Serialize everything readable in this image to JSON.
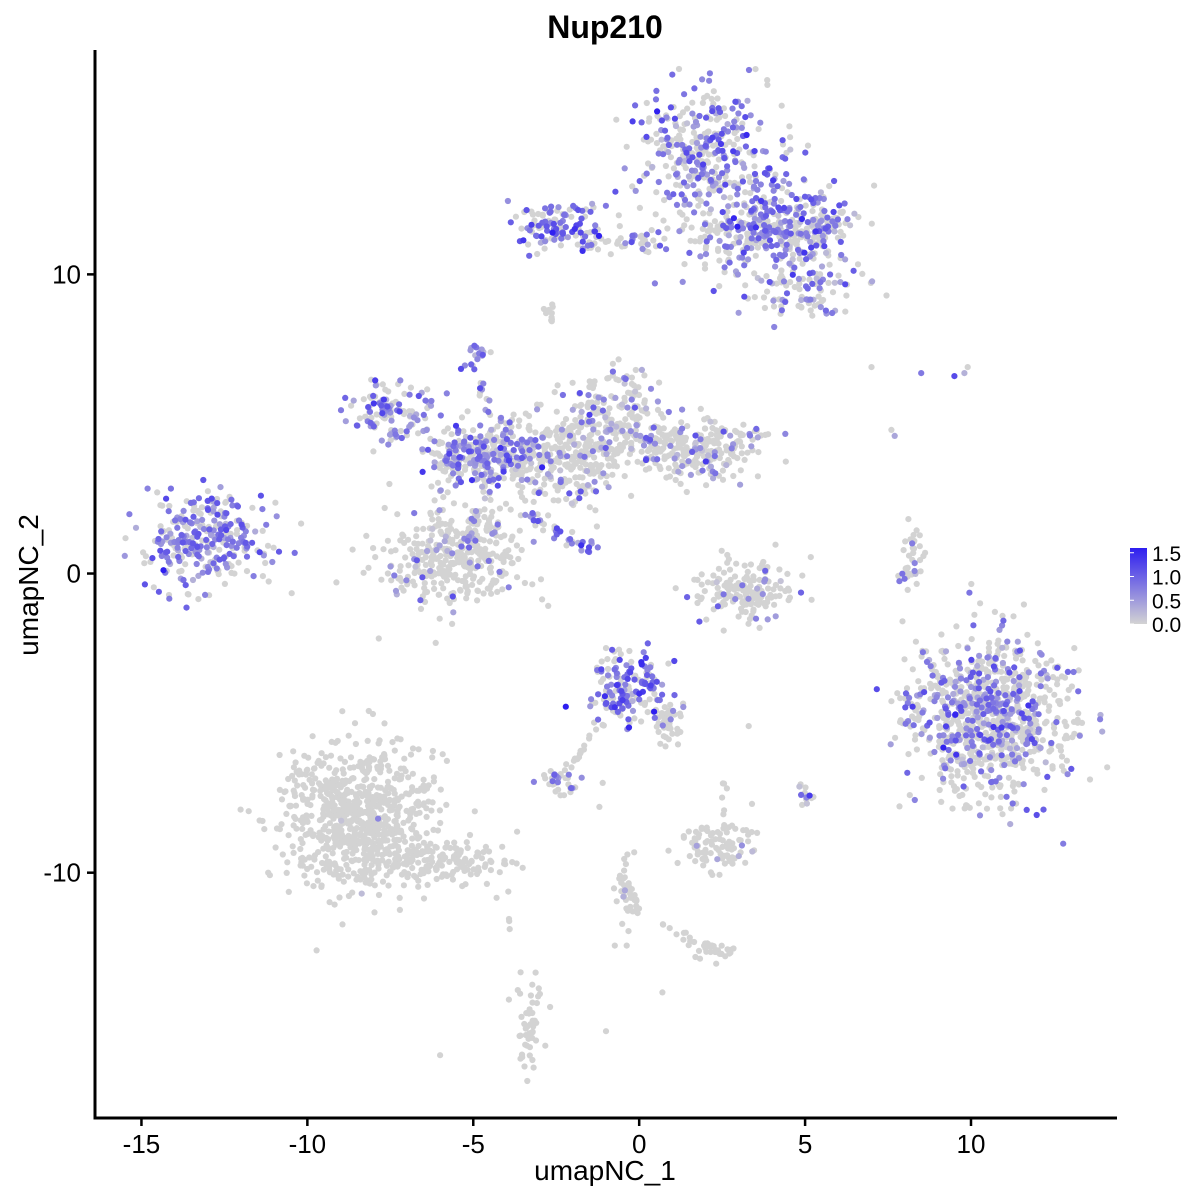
{
  "chart_data": {
    "type": "scatter",
    "title": "Nup210",
    "xlabel": "umapNC_1",
    "ylabel": "umapNC_2",
    "xlim": [
      -16.4,
      14.4
    ],
    "ylim": [
      -18.2,
      17.5
    ],
    "x_ticks": [
      -15,
      -10,
      -5,
      0,
      5,
      10
    ],
    "x_tick_labels": [
      "-15",
      "-10",
      "-5",
      "0",
      "5",
      "10"
    ],
    "y_ticks": [
      -10,
      0,
      10
    ],
    "y_tick_labels": [
      "-10",
      "0",
      "10"
    ],
    "grid": false,
    "color_scale": {
      "low_color": "#d3d3d3",
      "high_color": "#2e1ef0",
      "min": 0,
      "max": 1.6,
      "breaks": [
        1.5,
        1.0,
        0.5,
        0.0
      ],
      "break_labels": [
        "1.5",
        "1.0",
        "0.5",
        "0.0"
      ],
      "position": "right"
    },
    "clusters": [
      {
        "cx": -13.0,
        "cy": 1.1,
        "sx": 1.0,
        "sy": 0.75,
        "n": 300,
        "expr_frac": 0.6,
        "expr_mean": 0.75
      },
      {
        "cx": -8.4,
        "cy": -8.1,
        "sx": 1.1,
        "sy": 1.2,
        "n": 750,
        "expr_frac": 0.005,
        "expr_mean": 0.5
      },
      {
        "cx": -6.2,
        "cy": -9.7,
        "sx": 1.3,
        "sy": 0.35,
        "n": 160,
        "expr_frac": 0.0,
        "expr_mean": 0.0
      },
      {
        "cx": -5.6,
        "cy": 0.6,
        "sx": 1.1,
        "sy": 0.9,
        "n": 380,
        "expr_frac": 0.08,
        "expr_mean": 0.6
      },
      {
        "cx": -7.5,
        "cy": 5.4,
        "sx": 0.6,
        "sy": 0.5,
        "n": 120,
        "expr_frac": 0.6,
        "expr_mean": 0.7
      },
      {
        "cx": -4.8,
        "cy": 4.0,
        "sx": 0.9,
        "sy": 0.5,
        "n": 280,
        "expr_frac": 0.55,
        "expr_mean": 0.75
      },
      {
        "cx": -2.3,
        "cy": 3.8,
        "sx": 1.0,
        "sy": 0.8,
        "n": 300,
        "expr_frac": 0.12,
        "expr_mean": 0.65
      },
      {
        "cx": -0.8,
        "cy": 5.3,
        "sx": 0.6,
        "sy": 0.8,
        "n": 180,
        "expr_frac": 0.18,
        "expr_mean": 0.65
      },
      {
        "cx": 1.6,
        "cy": 4.2,
        "sx": 1.1,
        "sy": 0.5,
        "n": 280,
        "expr_frac": 0.2,
        "expr_mean": 0.7
      },
      {
        "cx": -4.9,
        "cy": 7.3,
        "sx": 0.2,
        "sy": 0.2,
        "n": 18,
        "expr_frac": 0.8,
        "expr_mean": 0.8
      },
      {
        "cx": -2.4,
        "cy": 11.7,
        "sx": 0.6,
        "sy": 0.4,
        "n": 110,
        "expr_frac": 0.6,
        "expr_mean": 0.9
      },
      {
        "cx": -0.3,
        "cy": 11.1,
        "sx": 1.1,
        "sy": 0.2,
        "n": 60,
        "expr_frac": 0.25,
        "expr_mean": 0.75
      },
      {
        "cx": 2.0,
        "cy": 14.2,
        "sx": 1.0,
        "sy": 1.0,
        "n": 320,
        "expr_frac": 0.5,
        "expr_mean": 0.75
      },
      {
        "cx": 3.6,
        "cy": 11.6,
        "sx": 1.2,
        "sy": 0.8,
        "n": 350,
        "expr_frac": 0.5,
        "expr_mean": 0.75
      },
      {
        "cx": 5.3,
        "cy": 11.5,
        "sx": 0.5,
        "sy": 0.5,
        "n": 120,
        "expr_frac": 0.45,
        "expr_mean": 0.75
      },
      {
        "cx": 5.1,
        "cy": 9.5,
        "sx": 0.8,
        "sy": 0.5,
        "n": 100,
        "expr_frac": 0.45,
        "expr_mean": 0.7
      },
      {
        "cx": -2.7,
        "cy": 8.6,
        "sx": 0.1,
        "sy": 0.3,
        "n": 10,
        "expr_frac": 0.0,
        "expr_mean": 0.0
      },
      {
        "cx": 3.2,
        "cy": -0.6,
        "sx": 0.8,
        "sy": 0.5,
        "n": 170,
        "expr_frac": 0.1,
        "expr_mean": 0.6
      },
      {
        "cx": -0.3,
        "cy": -3.9,
        "sx": 0.6,
        "sy": 0.6,
        "n": 170,
        "expr_frac": 0.55,
        "expr_mean": 0.95
      },
      {
        "cx": 0.9,
        "cy": -5.0,
        "sx": 0.3,
        "sy": 0.4,
        "n": 30,
        "expr_frac": 0.1,
        "expr_mean": 0.6
      },
      {
        "cx": -2.5,
        "cy": -6.9,
        "sx": 0.3,
        "sy": 0.2,
        "n": 35,
        "expr_frac": 0.3,
        "expr_mean": 0.7
      },
      {
        "cx": 2.4,
        "cy": -9.1,
        "sx": 0.6,
        "sy": 0.4,
        "n": 90,
        "expr_frac": 0.05,
        "expr_mean": 0.6
      },
      {
        "cx": 10.6,
        "cy": -4.8,
        "sx": 1.1,
        "sy": 1.3,
        "n": 900,
        "expr_frac": 0.3,
        "expr_mean": 0.75
      },
      {
        "cx": 8.1,
        "cy": -4.6,
        "sx": 0.2,
        "sy": 0.5,
        "n": 30,
        "expr_frac": 0.4,
        "expr_mean": 0.7
      },
      {
        "cx": 5.0,
        "cy": -7.4,
        "sx": 0.15,
        "sy": 0.15,
        "n": 12,
        "expr_frac": 0.5,
        "expr_mean": 0.7
      },
      {
        "cx": 8.2,
        "cy": 0.4,
        "sx": 0.2,
        "sy": 0.6,
        "n": 25,
        "expr_frac": 0.1,
        "expr_mean": 0.6
      },
      {
        "cx": -3.3,
        "cy": -15.0,
        "sx": 0.25,
        "sy": 0.8,
        "n": 50,
        "expr_frac": 0.0,
        "expr_mean": 0.0
      },
      {
        "cx": -0.4,
        "cy": -10.9,
        "sx": 0.2,
        "sy": 0.6,
        "n": 25,
        "expr_frac": 0.1,
        "expr_mean": 0.5
      },
      {
        "cx": 2.2,
        "cy": -12.6,
        "sx": 0.4,
        "sy": 0.15,
        "n": 25,
        "expr_frac": 0.0,
        "expr_mean": 0.0
      }
    ],
    "strands": [
      {
        "x1": -5.0,
        "y1": 7.0,
        "x2": -4.3,
        "y2": 4.3,
        "n": 14,
        "expr_frac": 0.6,
        "expr_mean": 0.8
      },
      {
        "x1": -3.4,
        "y1": 2.0,
        "x2": -1.2,
        "y2": 0.7,
        "n": 30,
        "expr_frac": 0.85,
        "expr_mean": 0.85
      },
      {
        "x1": -4.7,
        "y1": 3.0,
        "x2": -5.2,
        "y2": 1.0,
        "n": 18,
        "expr_frac": 0.4,
        "expr_mean": 0.7
      },
      {
        "x1": -2.0,
        "y1": -6.4,
        "x2": -1.1,
        "y2": -4.9,
        "n": 16,
        "expr_frac": 0.0,
        "expr_mean": 0.0
      },
      {
        "x1": 0.6,
        "y1": -4.3,
        "x2": 1.2,
        "y2": -5.7,
        "n": 14,
        "expr_frac": 0.2,
        "expr_mean": 0.6
      },
      {
        "x1": -0.6,
        "y1": -10.0,
        "x2": 0.0,
        "y2": -11.2,
        "n": 20,
        "expr_frac": 0.05,
        "expr_mean": 0.5
      },
      {
        "x1": 0.6,
        "y1": -11.8,
        "x2": 2.3,
        "y2": -12.6,
        "n": 16,
        "expr_frac": 0.0,
        "expr_mean": 0.0
      },
      {
        "x1": 7.9,
        "y1": -0.3,
        "x2": 8.4,
        "y2": 1.2,
        "n": 16,
        "expr_frac": 0.1,
        "expr_mean": 0.6
      },
      {
        "x1": -3.9,
        "y1": -10.1,
        "x2": -3.9,
        "y2": -12.0,
        "n": 4,
        "expr_frac": 0.0,
        "expr_mean": 0.0
      },
      {
        "x1": 2.6,
        "y1": -7.0,
        "x2": 2.5,
        "y2": -8.4,
        "n": 6,
        "expr_frac": 0.0,
        "expr_mean": 0.0
      }
    ],
    "singles": [
      [
        7.0,
        6.9,
        0.0
      ],
      [
        8.5,
        6.7,
        0.8
      ],
      [
        9.5,
        6.6,
        1.2
      ],
      [
        9.8,
        6.7,
        0.3
      ],
      [
        9.9,
        6.9,
        0.0
      ],
      [
        7.6,
        4.8,
        0.0
      ],
      [
        7.7,
        4.6,
        0.4
      ],
      [
        -6.0,
        -16.1,
        0.0
      ],
      [
        0.7,
        -14.0,
        0.0
      ],
      [
        3.3,
        -5.1,
        0.0
      ],
      [
        -1.1,
        -7.0,
        0.0
      ],
      [
        -1.2,
        -7.8,
        0.0
      ],
      [
        3.4,
        -7.7,
        0.0
      ],
      [
        -1.0,
        -15.3,
        0.0
      ],
      [
        4.3,
        8.8,
        0.9
      ]
    ]
  }
}
